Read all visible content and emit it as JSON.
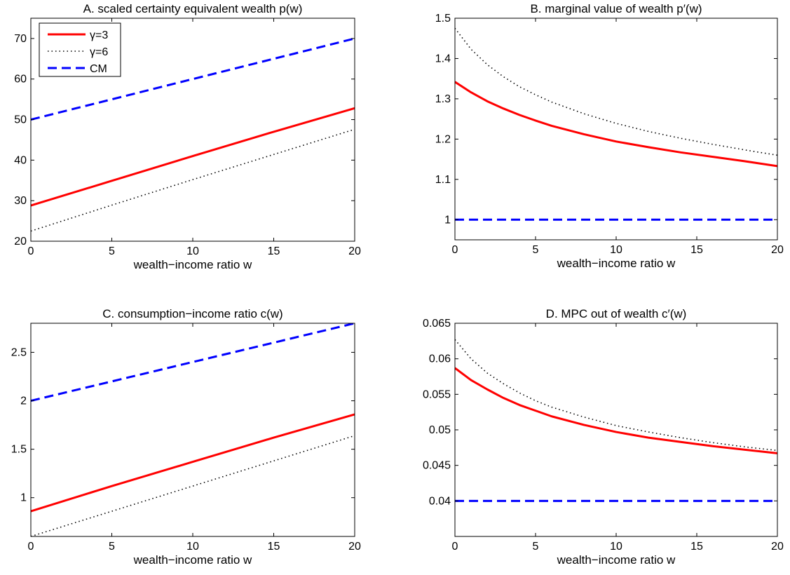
{
  "chart_data": [
    {
      "panel": "A",
      "type": "line",
      "title": "A. scaled certainty equivalent wealth p(w)",
      "xlabel": "wealth−income ratio w",
      "ylabel": "",
      "xlim": [
        0,
        20
      ],
      "ylim": [
        20,
        75
      ],
      "xticks": [
        0,
        5,
        10,
        15,
        20
      ],
      "xtick_labels": [
        "0",
        "5",
        "10",
        "15",
        "20"
      ],
      "yticks": [
        20,
        30,
        40,
        50,
        60,
        70
      ],
      "ytick_labels": [
        "20",
        "30",
        "40",
        "50",
        "60",
        "70"
      ],
      "x": [
        0,
        5,
        10,
        15,
        20
      ],
      "series": [
        {
          "name": "γ=3",
          "color": "#ff0000",
          "style": "solid",
          "values": [
            28.8,
            34.9,
            41.0,
            47.0,
            52.8
          ]
        },
        {
          "name": "γ=6",
          "color": "#000000",
          "style": "dotted",
          "values": [
            22.5,
            28.9,
            35.2,
            41.4,
            47.6
          ]
        },
        {
          "name": "CM",
          "color": "#0000ff",
          "style": "dashed",
          "values": [
            50.0,
            55.0,
            60.0,
            65.0,
            70.0
          ]
        }
      ],
      "legend": {
        "placement": "top-left",
        "entries": [
          "γ=3",
          "γ=6",
          "CM"
        ]
      }
    },
    {
      "panel": "B",
      "type": "line",
      "title": "B. marginal value of wealth p′(w)",
      "xlabel": "wealth−income ratio w",
      "ylabel": "",
      "xlim": [
        0,
        20
      ],
      "ylim": [
        0.95,
        1.5
      ],
      "xticks": [
        0,
        5,
        10,
        15,
        20
      ],
      "xtick_labels": [
        "0",
        "5",
        "10",
        "15",
        "20"
      ],
      "yticks": [
        1,
        1.1,
        1.2,
        1.3,
        1.4,
        1.5
      ],
      "ytick_labels": [
        "1",
        "1.1",
        "1.2",
        "1.3",
        "1.4",
        "1.5"
      ],
      "x": [
        0,
        1,
        2,
        3,
        4,
        5,
        6,
        8,
        10,
        12,
        14,
        16,
        18,
        20
      ],
      "series": [
        {
          "name": "γ=3",
          "color": "#ff0000",
          "style": "solid",
          "values": [
            1.342,
            1.316,
            1.294,
            1.276,
            1.26,
            1.246,
            1.233,
            1.212,
            1.194,
            1.18,
            1.167,
            1.156,
            1.145,
            1.133
          ]
        },
        {
          "name": "γ=6",
          "color": "#000000",
          "style": "dotted",
          "values": [
            1.475,
            1.423,
            1.385,
            1.355,
            1.33,
            1.31,
            1.292,
            1.263,
            1.239,
            1.219,
            1.202,
            1.187,
            1.173,
            1.16
          ]
        },
        {
          "name": "CM",
          "color": "#0000ff",
          "style": "dashed",
          "values": [
            1.0,
            1.0,
            1.0,
            1.0,
            1.0,
            1.0,
            1.0,
            1.0,
            1.0,
            1.0,
            1.0,
            1.0,
            1.0,
            1.0
          ]
        }
      ]
    },
    {
      "panel": "C",
      "type": "line",
      "title": "C. consumption−income ratio c(w)",
      "xlabel": "wealth−income ratio w",
      "ylabel": "",
      "xlim": [
        0,
        20
      ],
      "ylim": [
        0.6,
        2.8
      ],
      "xticks": [
        0,
        5,
        10,
        15,
        20
      ],
      "xtick_labels": [
        "0",
        "5",
        "10",
        "15",
        "20"
      ],
      "yticks": [
        1,
        1.5,
        2,
        2.5
      ],
      "ytick_labels": [
        "1",
        "1.5",
        "2",
        "2.5"
      ],
      "x": [
        0,
        5,
        10,
        15,
        20
      ],
      "series": [
        {
          "name": "γ=3",
          "color": "#ff0000",
          "style": "solid",
          "values": [
            0.86,
            1.12,
            1.37,
            1.62,
            1.86
          ]
        },
        {
          "name": "γ=6",
          "color": "#000000",
          "style": "dotted",
          "values": [
            0.6,
            0.86,
            1.12,
            1.38,
            1.64
          ]
        },
        {
          "name": "CM",
          "color": "#0000ff",
          "style": "dashed",
          "values": [
            2.0,
            2.2,
            2.4,
            2.6,
            2.8
          ]
        }
      ]
    },
    {
      "panel": "D",
      "type": "line",
      "title": "D. MPC out of wealth c′(w)",
      "xlabel": "wealth−income ratio w",
      "ylabel": "",
      "xlim": [
        0,
        20
      ],
      "ylim": [
        0.035,
        0.065
      ],
      "xticks": [
        0,
        5,
        10,
        15,
        20
      ],
      "xtick_labels": [
        "0",
        "5",
        "10",
        "15",
        "20"
      ],
      "yticks": [
        0.04,
        0.045,
        0.05,
        0.055,
        0.06,
        0.065
      ],
      "ytick_labels": [
        "0.04",
        "0.045",
        "0.05",
        "0.055",
        "0.06",
        "0.065"
      ],
      "x": [
        0,
        1,
        2,
        3,
        4,
        5,
        6,
        8,
        10,
        12,
        14,
        16,
        18,
        20
      ],
      "series": [
        {
          "name": "γ=3",
          "color": "#ff0000",
          "style": "solid",
          "values": [
            0.0587,
            0.057,
            0.0557,
            0.0545,
            0.0535,
            0.0527,
            0.0519,
            0.0507,
            0.0497,
            0.0489,
            0.0483,
            0.0477,
            0.0472,
            0.0467
          ]
        },
        {
          "name": "γ=6",
          "color": "#000000",
          "style": "dotted",
          "values": [
            0.0627,
            0.06,
            0.058,
            0.0565,
            0.0552,
            0.0541,
            0.0532,
            0.0518,
            0.0506,
            0.0497,
            0.0489,
            0.0482,
            0.0476,
            0.0471
          ]
        },
        {
          "name": "CM",
          "color": "#0000ff",
          "style": "dashed",
          "values": [
            0.04,
            0.04,
            0.04,
            0.04,
            0.04,
            0.04,
            0.04,
            0.04,
            0.04,
            0.04,
            0.04,
            0.04,
            0.04,
            0.04
          ]
        }
      ]
    }
  ]
}
